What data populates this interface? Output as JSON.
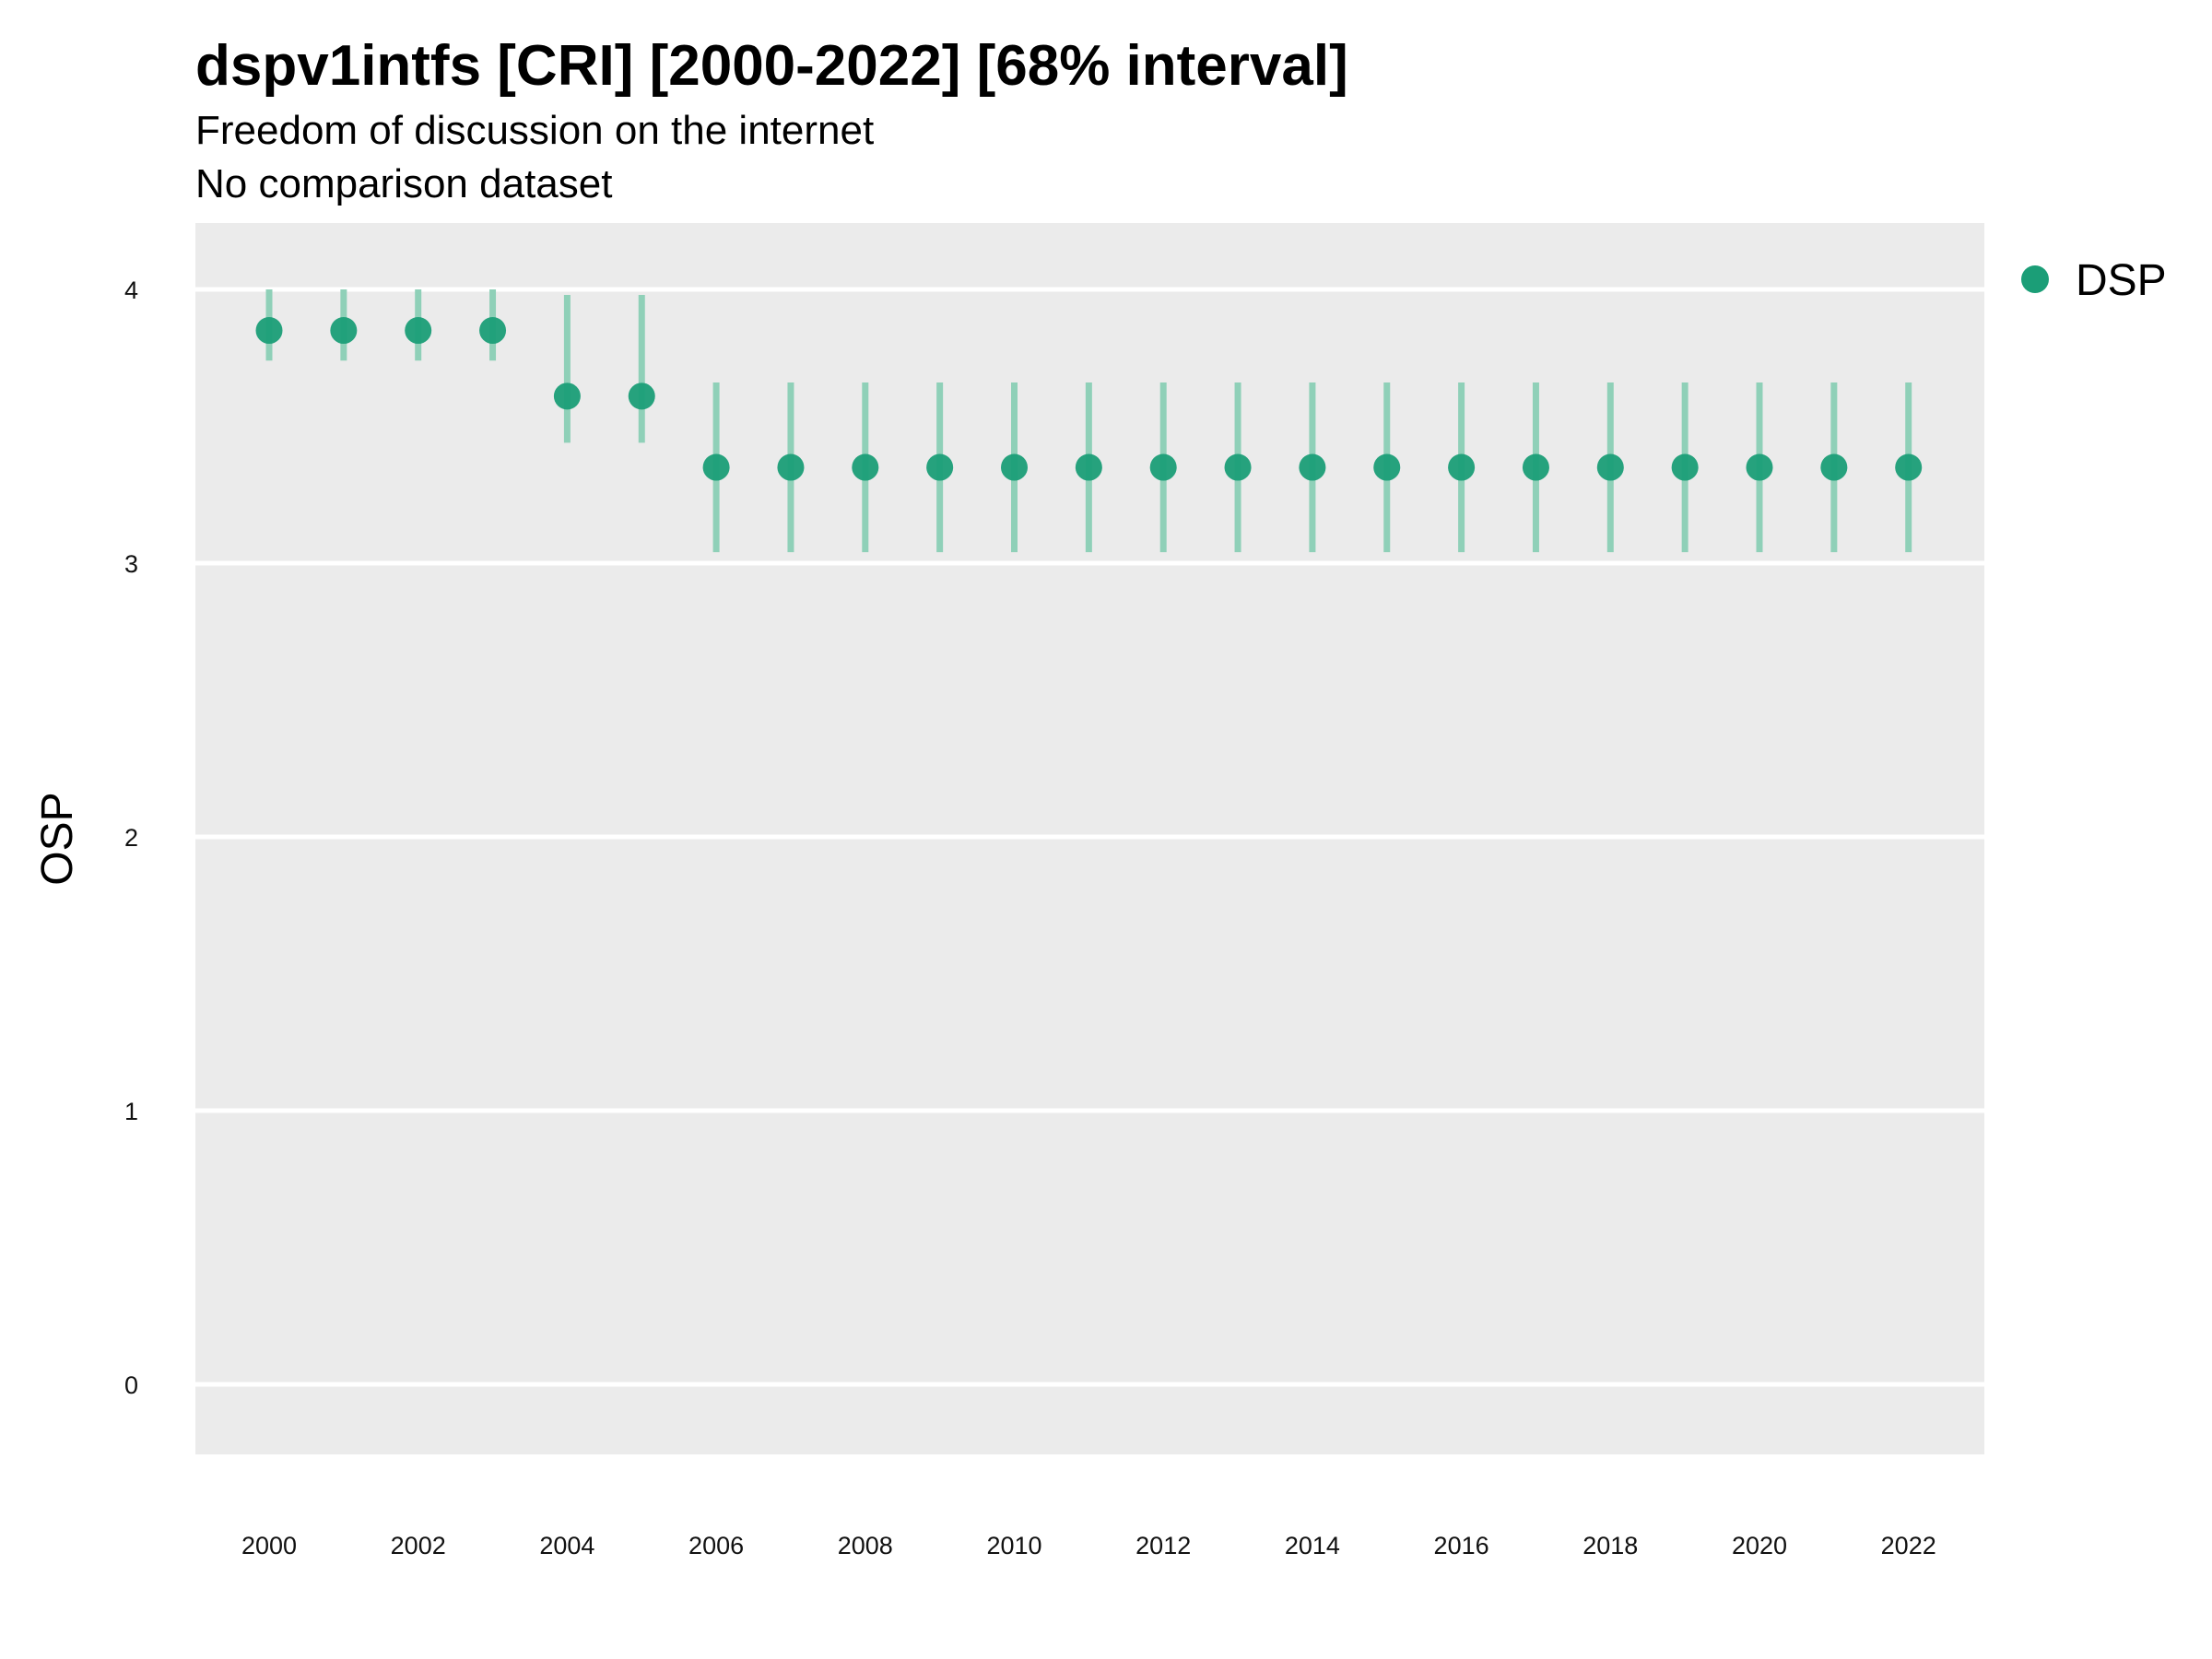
{
  "chart_data": {
    "type": "scatter",
    "title": "dspv1intfs [CRI] [2000-2022] [68% interval]",
    "subtitle": "Freedom of discussion on the internet",
    "caption_line": "No comparison dataset",
    "ylabel": "OSP",
    "xlabel": "",
    "ylim": [
      -0.25,
      4.25
    ],
    "xlim": [
      1999,
      2023
    ],
    "y_ticks": [
      0,
      1,
      2,
      3,
      4
    ],
    "x_ticks": [
      2000,
      2002,
      2004,
      2006,
      2008,
      2010,
      2012,
      2014,
      2016,
      2018,
      2020,
      2022
    ],
    "grid": "horizontal",
    "legend_position": "right",
    "colors": {
      "point": "#1b9e77",
      "interval": "#8fd0b8",
      "panel": "#ebebeb",
      "grid": "#ffffff"
    },
    "series": [
      {
        "name": "DSP",
        "x": [
          2000,
          2001,
          2002,
          2003,
          2004,
          2005,
          2006,
          2007,
          2008,
          2009,
          2010,
          2011,
          2012,
          2013,
          2014,
          2015,
          2016,
          2017,
          2018,
          2019,
          2020,
          2021,
          2022
        ],
        "y": [
          3.85,
          3.85,
          3.85,
          3.85,
          3.61,
          3.61,
          3.35,
          3.35,
          3.35,
          3.35,
          3.35,
          3.35,
          3.35,
          3.35,
          3.35,
          3.35,
          3.35,
          3.35,
          3.35,
          3.35,
          3.35,
          3.35,
          3.35
        ],
        "lower": [
          3.74,
          3.74,
          3.74,
          3.74,
          3.44,
          3.44,
          3.04,
          3.04,
          3.04,
          3.04,
          3.04,
          3.04,
          3.04,
          3.04,
          3.04,
          3.04,
          3.04,
          3.04,
          3.04,
          3.04,
          3.04,
          3.04,
          3.04
        ],
        "upper": [
          4.0,
          4.0,
          4.0,
          4.0,
          3.98,
          3.98,
          3.66,
          3.66,
          3.66,
          3.66,
          3.66,
          3.66,
          3.66,
          3.66,
          3.66,
          3.66,
          3.66,
          3.66,
          3.66,
          3.66,
          3.66,
          3.66,
          3.66
        ]
      }
    ]
  }
}
